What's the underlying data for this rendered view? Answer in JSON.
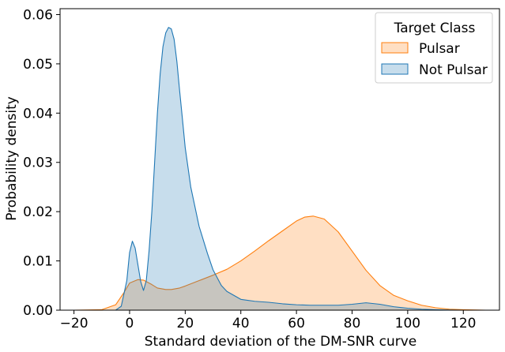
{
  "chart_data": {
    "type": "area",
    "xlabel": "Standard deviation of the DM-SNR curve",
    "ylabel": "Probability density",
    "xlim": [
      -25,
      133
    ],
    "ylim": [
      0,
      0.0612
    ],
    "xticks": [
      -20,
      0,
      20,
      40,
      60,
      80,
      100,
      120
    ],
    "xtick_labels": [
      "−20",
      "0",
      "20",
      "40",
      "60",
      "80",
      "100",
      "120"
    ],
    "yticks": [
      0,
      0.01,
      0.02,
      0.03,
      0.04,
      0.05,
      0.06
    ],
    "ytick_labels": [
      "0.00",
      "0.01",
      "0.02",
      "0.03",
      "0.04",
      "0.05",
      "0.06"
    ],
    "grid": false,
    "legend": {
      "title": "Target Class",
      "placement": "top-right"
    },
    "series": [
      {
        "name": "Pulsar",
        "line_color": "#ff7f0e",
        "fill_color": "#ffd8b4",
        "x": [
          -20,
          -10,
          -5,
          -2,
          0,
          3,
          5,
          8,
          10,
          13,
          15,
          18,
          20,
          25,
          30,
          35,
          40,
          45,
          50,
          55,
          60,
          63,
          66,
          70,
          75,
          80,
          85,
          90,
          95,
          100,
          105,
          110,
          115,
          120,
          125,
          128
        ],
        "values": [
          0,
          0.0001,
          0.0011,
          0.0036,
          0.0055,
          0.0062,
          0.0061,
          0.0052,
          0.0045,
          0.0042,
          0.0042,
          0.0045,
          0.0049,
          0.006,
          0.0071,
          0.0083,
          0.01,
          0.012,
          0.0141,
          0.0161,
          0.0181,
          0.0189,
          0.0191,
          0.0185,
          0.0159,
          0.012,
          0.0081,
          0.005,
          0.003,
          0.0019,
          0.001,
          0.0005,
          0.0002,
          0.0001,
          3e-05,
          0
        ]
      },
      {
        "name": "Not Pulsar",
        "line_color": "#1f77b4",
        "fill_color": "#c6dcee",
        "x": [
          -20,
          -5,
          -3,
          -1,
          0,
          1,
          2,
          4,
          5,
          6,
          7,
          8,
          9,
          10,
          11,
          12,
          13,
          14,
          15,
          16,
          17,
          18,
          19,
          20,
          22,
          25,
          28,
          30,
          33,
          35,
          40,
          45,
          50,
          55,
          60,
          65,
          70,
          75,
          80,
          85,
          90,
          95,
          100,
          105,
          110,
          115,
          120
        ],
        "values": [
          0,
          0,
          0.0008,
          0.006,
          0.0117,
          0.014,
          0.0126,
          0.0058,
          0.004,
          0.006,
          0.012,
          0.02,
          0.03,
          0.04,
          0.048,
          0.0535,
          0.0563,
          0.0574,
          0.0571,
          0.055,
          0.0505,
          0.0445,
          0.0388,
          0.033,
          0.025,
          0.017,
          0.0115,
          0.0082,
          0.005,
          0.0038,
          0.0022,
          0.0018,
          0.0016,
          0.0013,
          0.0011,
          0.001,
          0.001,
          0.001,
          0.0012,
          0.0015,
          0.0012,
          0.0007,
          0.0004,
          0.0002,
          0.0001,
          4e-05,
          0
        ]
      }
    ]
  }
}
